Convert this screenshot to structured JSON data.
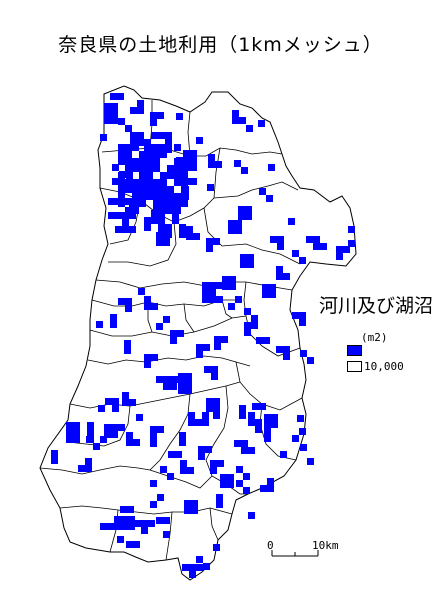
{
  "title": "奈良県の土地利用（1kmメッシュ）",
  "category": "河川及び湖沼",
  "legend": {
    "unit": "(m2)",
    "items": [
      {
        "label": "",
        "color": "#0000ff"
      },
      {
        "label": "10,000",
        "color": "#ffffff"
      }
    ]
  },
  "scale": {
    "start_label": "0",
    "end_label": "10km"
  },
  "colors": {
    "water": "#0000ff",
    "boundary": "#000000",
    "background": "#ffffff"
  }
}
